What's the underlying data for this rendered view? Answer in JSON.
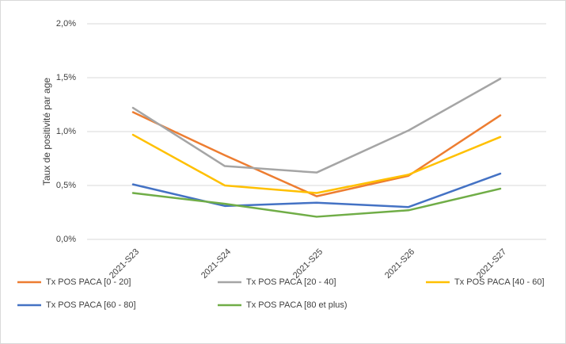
{
  "chart_data": {
    "type": "line",
    "y_label": "Taux de positivité par age",
    "categories": [
      "2021-S23",
      "2021-S24",
      "2021-S25",
      "2021-S26",
      "2021-S27"
    ],
    "series": [
      {
        "name": "Tx POS PACA [0 - 20]",
        "color": "#ED7D31",
        "values": [
          1.18,
          0.78,
          0.4,
          0.59,
          1.15
        ]
      },
      {
        "name": "Tx POS PACA [20 - 40]",
        "color": "#A5A5A5",
        "values": [
          1.22,
          0.68,
          0.62,
          1.01,
          1.49
        ]
      },
      {
        "name": "Tx POS PACA [40 - 60]",
        "color": "#FFC000",
        "values": [
          0.97,
          0.5,
          0.43,
          0.6,
          0.95
        ]
      },
      {
        "name": "Tx POS PACA [60 - 80]",
        "color": "#4472C4",
        "values": [
          0.51,
          0.31,
          0.34,
          0.3,
          0.61
        ]
      },
      {
        "name": "Tx POS PACA [80 et plus)",
        "color": "#70AD47",
        "values": [
          0.43,
          0.33,
          0.21,
          0.27,
          0.47
        ]
      }
    ],
    "ylim": [
      0,
      2
    ],
    "yticks": [
      {
        "value": 0,
        "label": "0,0%"
      },
      {
        "value": 0.5,
        "label": "0,5%"
      },
      {
        "value": 1,
        "label": "1,0%"
      },
      {
        "value": 1.5,
        "label": "1,5%"
      },
      {
        "value": 2,
        "label": "2,0%"
      }
    ],
    "grid": true,
    "legend": "bottom"
  }
}
